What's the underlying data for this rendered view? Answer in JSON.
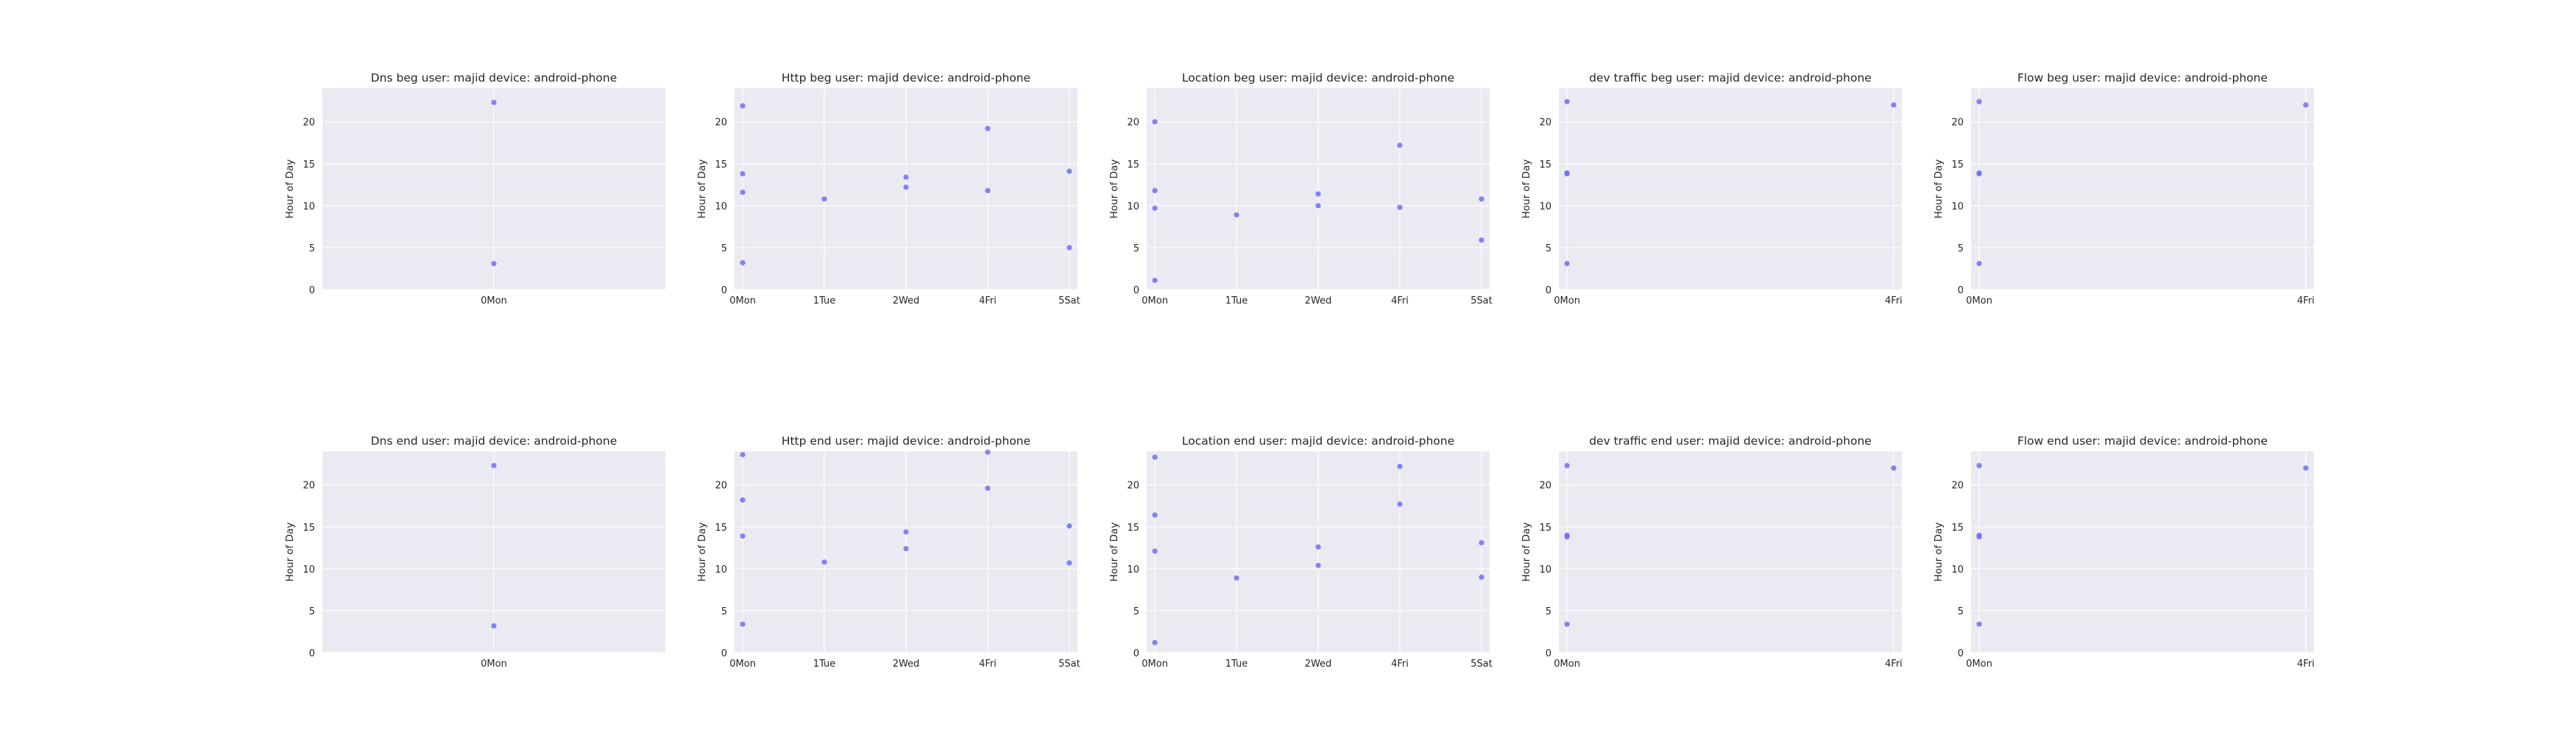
{
  "style": {
    "panel_bg": "#EAEAF2",
    "grid": "#FFFFFF",
    "marker": "#6F6FF0"
  },
  "chart_data": [
    {
      "type": "scatter",
      "title": "Dns beg user: majid device: android-phone",
      "ylabel": "Hour of Day",
      "xticks": [
        {
          "x": 0,
          "label": "0Mon"
        }
      ],
      "xlim": [
        -0.5,
        0.5
      ],
      "ylim": [
        0,
        24
      ],
      "yticks": [
        0,
        5,
        10,
        15,
        20
      ],
      "grid": true,
      "x": [
        0,
        0
      ],
      "y": [
        22.3,
        3.1
      ]
    },
    {
      "type": "scatter",
      "title": "Http beg user: majid device: android-phone",
      "ylabel": "Hour of Day",
      "xticks": [
        {
          "x": 0,
          "label": "0Mon"
        },
        {
          "x": 1,
          "label": "1Tue"
        },
        {
          "x": 2,
          "label": "2Wed"
        },
        {
          "x": 3,
          "label": "4Fri"
        },
        {
          "x": 4,
          "label": "5Sat"
        }
      ],
      "xlim": [
        -0.1,
        4.1
      ],
      "ylim": [
        0,
        24
      ],
      "yticks": [
        0,
        5,
        10,
        15,
        20
      ],
      "grid": true,
      "x": [
        0,
        0,
        0,
        0,
        1,
        2,
        2,
        3,
        3,
        4,
        4
      ],
      "y": [
        21.9,
        13.8,
        11.6,
        3.2,
        10.8,
        13.4,
        12.2,
        19.2,
        11.8,
        14.1,
        5.0
      ]
    },
    {
      "type": "scatter",
      "title": "Location beg user: majid device: android-phone",
      "ylabel": "Hour of Day",
      "xticks": [
        {
          "x": 0,
          "label": "0Mon"
        },
        {
          "x": 1,
          "label": "1Tue"
        },
        {
          "x": 2,
          "label": "2Wed"
        },
        {
          "x": 3,
          "label": "4Fri"
        },
        {
          "x": 4,
          "label": "5Sat"
        }
      ],
      "xlim": [
        -0.1,
        4.1
      ],
      "ylim": [
        0,
        24
      ],
      "yticks": [
        0,
        5,
        10,
        15,
        20
      ],
      "grid": true,
      "x": [
        0,
        0,
        0,
        0,
        1,
        2,
        2,
        3,
        3,
        4,
        4
      ],
      "y": [
        20.0,
        11.8,
        9.7,
        1.1,
        8.9,
        11.4,
        10.0,
        17.2,
        9.8,
        10.8,
        5.9
      ]
    },
    {
      "type": "scatter",
      "title": "dev traffic beg user: majid device: android-phone",
      "ylabel": "Hour of Day",
      "xticks": [
        {
          "x": 0,
          "label": "0Mon"
        },
        {
          "x": 4,
          "label": "4Fri"
        }
      ],
      "xlim": [
        -0.1,
        4.1
      ],
      "ylim": [
        0,
        24
      ],
      "yticks": [
        0,
        5,
        10,
        15,
        20
      ],
      "grid": true,
      "x": [
        0,
        0,
        0,
        0,
        4
      ],
      "y": [
        22.4,
        13.9,
        13.8,
        3.1,
        22.0
      ]
    },
    {
      "type": "scatter",
      "title": "Flow beg user: majid device: android-phone",
      "ylabel": "Hour of Day",
      "xticks": [
        {
          "x": 0,
          "label": "0Mon"
        },
        {
          "x": 4,
          "label": "4Fri"
        }
      ],
      "xlim": [
        -0.1,
        4.1
      ],
      "ylim": [
        0,
        24
      ],
      "yticks": [
        0,
        5,
        10,
        15,
        20
      ],
      "grid": true,
      "x": [
        0,
        0,
        0,
        0,
        4
      ],
      "y": [
        22.4,
        13.9,
        13.8,
        3.1,
        22.0
      ]
    },
    {
      "type": "scatter",
      "title": "Dns end user: majid device: android-phone",
      "ylabel": "Hour of Day",
      "xticks": [
        {
          "x": 0,
          "label": "0Mon"
        }
      ],
      "xlim": [
        -0.5,
        0.5
      ],
      "ylim": [
        0,
        24
      ],
      "yticks": [
        0,
        5,
        10,
        15,
        20
      ],
      "grid": true,
      "x": [
        0,
        0
      ],
      "y": [
        22.3,
        3.2
      ]
    },
    {
      "type": "scatter",
      "title": "Http end user: majid device: android-phone",
      "ylabel": "Hour of Day",
      "xticks": [
        {
          "x": 0,
          "label": "0Mon"
        },
        {
          "x": 1,
          "label": "1Tue"
        },
        {
          "x": 2,
          "label": "2Wed"
        },
        {
          "x": 3,
          "label": "4Fri"
        },
        {
          "x": 4,
          "label": "5Sat"
        }
      ],
      "xlim": [
        -0.1,
        4.1
      ],
      "ylim": [
        0,
        24
      ],
      "yticks": [
        0,
        5,
        10,
        15,
        20
      ],
      "grid": true,
      "x": [
        0,
        0,
        0,
        0,
        1,
        2,
        2,
        3,
        3,
        4,
        4
      ],
      "y": [
        23.6,
        18.2,
        13.9,
        3.4,
        10.8,
        14.4,
        12.4,
        23.9,
        19.6,
        15.1,
        10.7
      ]
    },
    {
      "type": "scatter",
      "title": "Location end user: majid device: android-phone",
      "ylabel": "Hour of Day",
      "xticks": [
        {
          "x": 0,
          "label": "0Mon"
        },
        {
          "x": 1,
          "label": "1Tue"
        },
        {
          "x": 2,
          "label": "2Wed"
        },
        {
          "x": 3,
          "label": "4Fri"
        },
        {
          "x": 4,
          "label": "5Sat"
        }
      ],
      "xlim": [
        -0.1,
        4.1
      ],
      "ylim": [
        0,
        24
      ],
      "yticks": [
        0,
        5,
        10,
        15,
        20
      ],
      "grid": true,
      "x": [
        0,
        0,
        0,
        0,
        1,
        2,
        2,
        3,
        3,
        4,
        4
      ],
      "y": [
        23.3,
        16.4,
        12.1,
        1.2,
        8.9,
        12.6,
        10.4,
        22.2,
        17.7,
        13.1,
        9.0
      ]
    },
    {
      "type": "scatter",
      "title": "dev traffic end user: majid device: android-phone",
      "ylabel": "Hour of Day",
      "xticks": [
        {
          "x": 0,
          "label": "0Mon"
        },
        {
          "x": 4,
          "label": "4Fri"
        }
      ],
      "xlim": [
        -0.1,
        4.1
      ],
      "ylim": [
        0,
        24
      ],
      "yticks": [
        0,
        5,
        10,
        15,
        20
      ],
      "grid": true,
      "x": [
        0,
        0,
        0,
        0,
        4
      ],
      "y": [
        22.3,
        14.0,
        13.8,
        3.4,
        22.0
      ]
    },
    {
      "type": "scatter",
      "title": "Flow end user: majid device: android-phone",
      "ylabel": "Hour of Day",
      "xticks": [
        {
          "x": 0,
          "label": "0Mon"
        },
        {
          "x": 4,
          "label": "4Fri"
        }
      ],
      "xlim": [
        -0.1,
        4.1
      ],
      "ylim": [
        0,
        24
      ],
      "yticks": [
        0,
        5,
        10,
        15,
        20
      ],
      "grid": true,
      "x": [
        0,
        0,
        0,
        0,
        4
      ],
      "y": [
        22.3,
        14.0,
        13.8,
        3.4,
        22.0
      ]
    }
  ]
}
